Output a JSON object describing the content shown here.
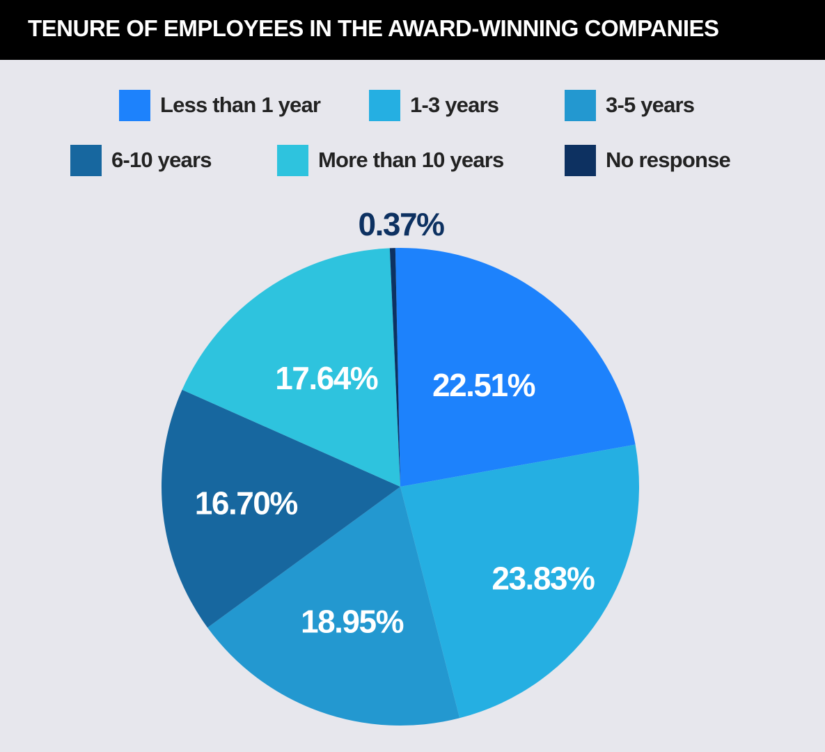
{
  "title": "TENURE OF EMPLOYEES IN THE AWARD-WINNING COMPANIES",
  "chart_data": {
    "type": "pie",
    "title": "TENURE OF EMPLOYEES IN THE AWARD-WINNING COMPANIES",
    "legend_position": "top",
    "slices": [
      {
        "label": "Less than 1 year",
        "value": 22.51,
        "display": "22.51%",
        "color": "#1d82fc",
        "label_color": "#ffffff"
      },
      {
        "label": "1-3 years",
        "value": 23.83,
        "display": "23.83%",
        "color": "#25afe2",
        "label_color": "#ffffff"
      },
      {
        "label": "3-5 years",
        "value": 18.95,
        "display": "18.95%",
        "color": "#2398d0",
        "label_color": "#ffffff"
      },
      {
        "label": "6-10 years",
        "value": 16.7,
        "display": "16.70%",
        "color": "#17679f",
        "label_color": "#ffffff"
      },
      {
        "label": "More than 10 years",
        "value": 17.64,
        "display": "17.64%",
        "color": "#2ec3de",
        "label_color": "#ffffff"
      },
      {
        "label": "No response",
        "value": 0.37,
        "display": "0.37%",
        "color": "#0d3161",
        "label_color": "#0d3161"
      }
    ]
  }
}
